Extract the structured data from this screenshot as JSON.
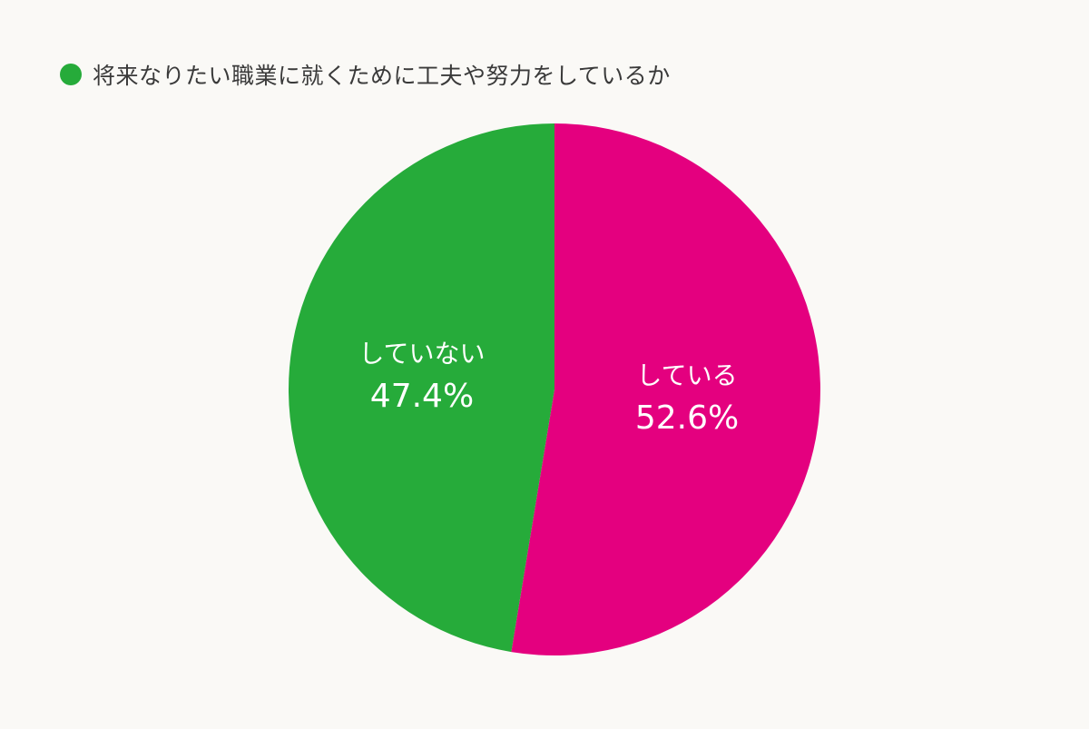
{
  "chart_data": {
    "type": "pie",
    "title": "将来なりたい職業に就くために工夫や努力をしているか",
    "slices": [
      {
        "label": "している",
        "value": 52.6,
        "value_label": "52.6%",
        "color": "#e4007f"
      },
      {
        "label": "していない",
        "value": 47.4,
        "value_label": "47.4%",
        "color": "#26ab3a"
      }
    ],
    "start": "12 o'clock",
    "direction": "clockwise",
    "legend": {
      "label": "将来なりたい職業に就くために工夫や努力をしているか",
      "color": "#26ab3a",
      "position": "top-left"
    }
  }
}
